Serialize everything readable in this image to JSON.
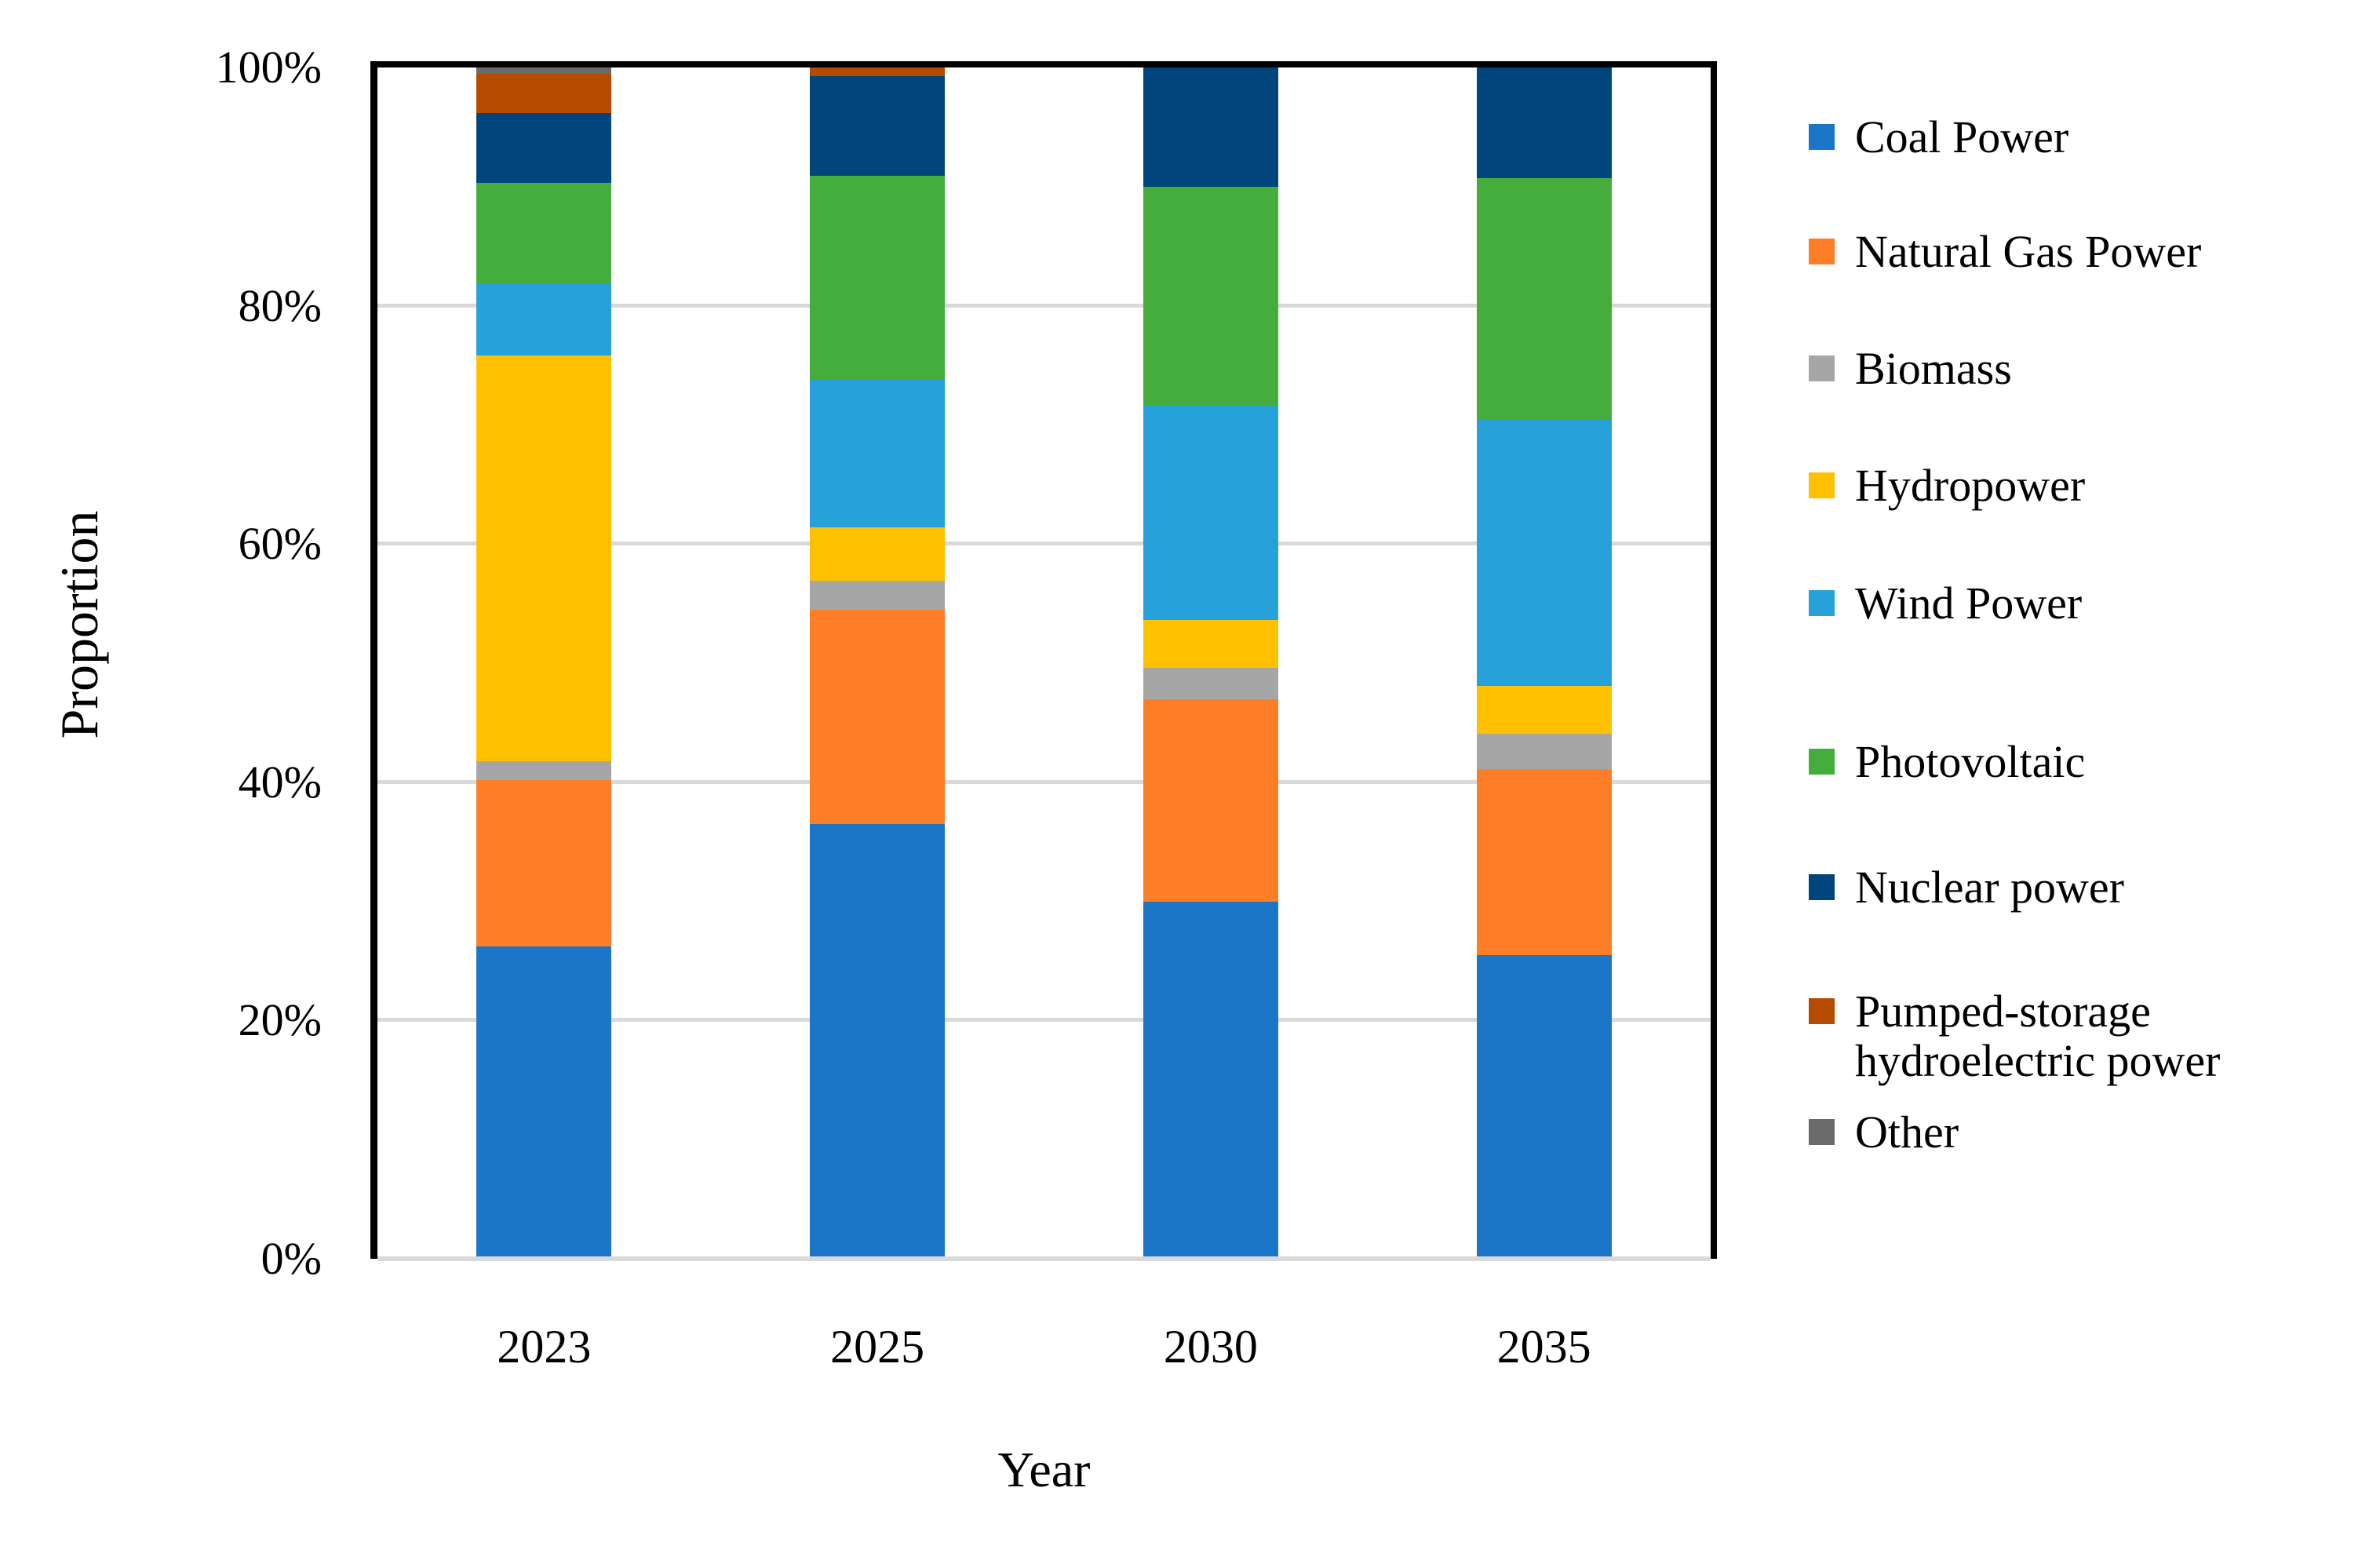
{
  "chart": {
    "y_axis_title": "Proportion",
    "x_axis_title": "Year"
  },
  "chart_data": {
    "type": "bar",
    "stacked": true,
    "title": "",
    "xlabel": "Year",
    "ylabel": "Proportion",
    "categories": [
      "2023",
      "2025",
      "2030",
      "2035"
    ],
    "series": [
      {
        "name": "Coal Power",
        "color": "#1b76c8",
        "values": [
          26.2,
          36.5,
          30.0,
          25.5
        ]
      },
      {
        "name": "Natural Gas Power",
        "color": "#fd7e27",
        "values": [
          14.0,
          18.0,
          17.0,
          15.6
        ]
      },
      {
        "name": "Biomass",
        "color": "#a6a6a6",
        "values": [
          1.6,
          2.4,
          2.6,
          3.0
        ]
      },
      {
        "name": "Hydropower",
        "color": "#ffc000",
        "values": [
          34.0,
          4.5,
          4.0,
          4.0
        ]
      },
      {
        "name": "Wind Power",
        "color": "#27a1da",
        "values": [
          6.1,
          12.4,
          18.1,
          22.3
        ]
      },
      {
        "name": "Photovoltaic",
        "color": "#44ad3b",
        "values": [
          8.4,
          17.1,
          18.3,
          20.3
        ]
      },
      {
        "name": "Nuclear power",
        "color": "#00457c",
        "values": [
          5.9,
          8.4,
          10.0,
          9.3
        ]
      },
      {
        "name": "Pumped-storage hydroelectric power",
        "color": "#b64b00",
        "values": [
          3.3,
          0.7,
          0.0,
          0.0
        ]
      },
      {
        "name": "Other",
        "color": "#6b6b6b",
        "values": [
          0.5,
          0.0,
          0.0,
          0.0
        ]
      }
    ],
    "ylim": [
      0,
      100
    ],
    "yticks": [
      {
        "value": 0,
        "label": "0%"
      },
      {
        "value": 20,
        "label": "20%"
      },
      {
        "value": 40,
        "label": "40%"
      },
      {
        "value": 60,
        "label": "60%"
      },
      {
        "value": 80,
        "label": "80%"
      },
      {
        "value": 100,
        "label": "100%"
      }
    ],
    "grid": true,
    "gridline_color": "#d9d9d9",
    "legend_position": "right"
  }
}
